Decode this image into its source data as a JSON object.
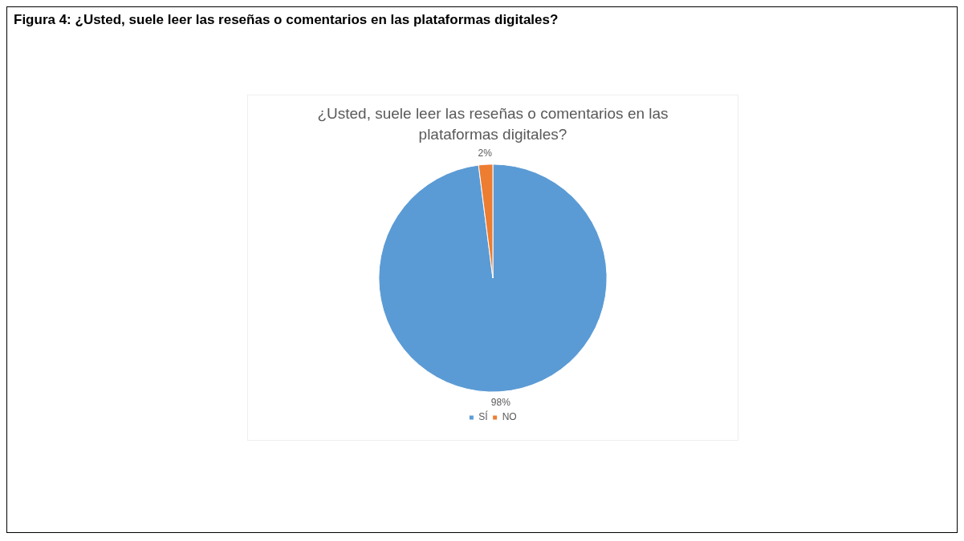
{
  "chart_data": {
    "type": "pie",
    "title": "Figura 4: ¿Usted, suele leer las reseñas o comentarios en las plataformas digitales?",
    "subtitle": "¿Usted, suele leer las reseñas o comentarios en las plataformas digitales?",
    "categories": [
      "SÍ",
      "NO"
    ],
    "values": [
      98,
      2
    ],
    "colors": [
      "#5b9bd5",
      "#ed7d31"
    ],
    "value_labels": [
      "98%",
      "2%"
    ],
    "legend": "bottom"
  }
}
